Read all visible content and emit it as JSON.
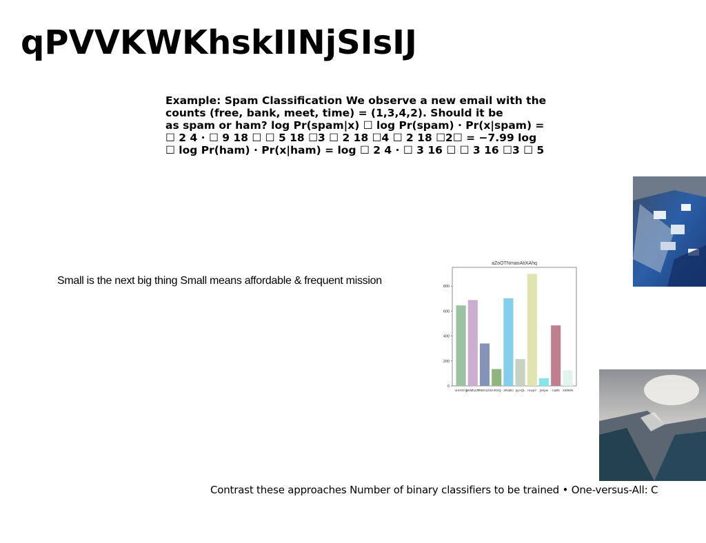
{
  "slide": {
    "title": "qPVVKWKhskIINjSIsIJ",
    "body_lines": [
      "Example: Spam Classification We observe a new email with the",
      "counts (free, bank, meet, time) = (1,3,4,2). Should it be",
      "as spam or ham? log Pr(spam|x) ☐ log Pr(spam) · Pr(x|spam) =",
      "☐ 2 4 · ☐ 9 18 ☐ ☐ 5 18 ☐3 ☐ 2 18 ☐4 ☐ 2 18 ☐2☐ = −7.99 log",
      "☐ log Pr(ham) · Pr(x|ham) = log ☐ 2 4 · ☐ 3 16 ☐ ☐ 3 16 ☐3 ☐ 5"
    ],
    "caption": "Small is the next big thing Small means affordable & frequent mission",
    "footer": "Contrast these approaches Number of binary classifiers to be trained • One-versus-All: C"
  },
  "chart_data": {
    "type": "bar",
    "title": "aZoOTNmaoAtiXAhq",
    "categories": [
      "oIXrNTQ",
      "jWMbdJT",
      "TRBGIdcE",
      "ARXQ",
      "XRaBo",
      "pyAQL",
      "rnwpY",
      "jsXpw",
      "CaBb",
      "XtMMN"
    ],
    "values": [
      645,
      688,
      340,
      135,
      703,
      215,
      898,
      62,
      485,
      125
    ],
    "colors": [
      "#9cc2a4",
      "#c9aed0",
      "#8494b6",
      "#8fb47d",
      "#86cfea",
      "#c8d2c2",
      "#dfe4b0",
      "#86e5ea",
      "#c07f8f",
      "#e1f5ee"
    ],
    "ylim": [
      0,
      950
    ],
    "yticks": [
      0,
      200,
      400,
      600,
      800
    ],
    "grid": false
  }
}
